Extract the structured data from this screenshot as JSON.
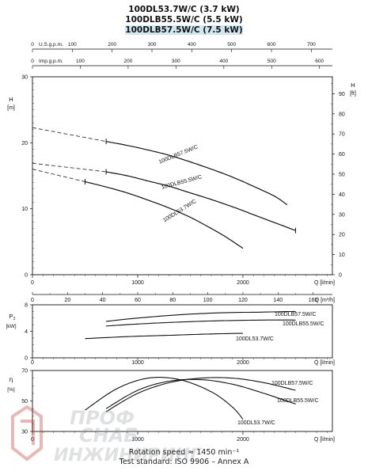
{
  "titles": [
    "100DL53.7W/C (3.7 kW)",
    "100DLB55.5W/C (5.5 kW)",
    "100DLB57.5W/C (7.5 kW)"
  ],
  "footer": {
    "line1": "Rotation speed ≈ 1450 min⁻¹",
    "line2": "Test standard: ISO 9906 – Annex A"
  },
  "watermark": "ПРОФ СНАБ ИНЖИНИРИНГ",
  "colors": {
    "curve": "#111111",
    "dashed": "#333333",
    "watermark": "#c0392b"
  },
  "chart_data": [
    {
      "type": "line",
      "title": "",
      "top_axes": [
        {
          "label": "U.S.g.p.m.",
          "ticks": [
            0,
            100,
            200,
            300,
            400,
            500,
            600,
            700
          ]
        },
        {
          "label": "Imp.g.p.m.",
          "ticks": [
            0,
            100,
            200,
            300,
            400,
            500,
            600
          ]
        }
      ],
      "xlabel": "Q [l/min]",
      "xlim": [
        0,
        2850
      ],
      "xticks": [
        0,
        1000,
        2000
      ],
      "ylabel": "H [m]",
      "ylim": [
        0,
        30
      ],
      "yticks": [
        0,
        10,
        20,
        30
      ],
      "y2label": "H [ft]",
      "y2ticks": [
        0,
        10,
        20,
        30,
        40,
        50,
        60,
        70,
        80,
        90
      ],
      "series": [
        {
          "name": "100DLB57.5W/C",
          "dashed": {
            "x": [
              0,
              700
            ],
            "y": [
              22.3,
              20.2
            ]
          },
          "x": [
            700,
            900,
            1100,
            1300,
            1500,
            1700,
            1900,
            2100,
            2300,
            2420
          ],
          "y": [
            20.2,
            19.6,
            18.9,
            18.1,
            17.1,
            16.0,
            14.8,
            13.4,
            11.9,
            10.6
          ]
        },
        {
          "name": "100DLB55.5W/C",
          "dashed": {
            "x": [
              0,
              700
            ],
            "y": [
              16.9,
              15.6
            ]
          },
          "x": [
            700,
            900,
            1100,
            1300,
            1500,
            1700,
            1900,
            2100,
            2300,
            2500
          ],
          "y": [
            15.6,
            15.0,
            14.2,
            13.4,
            12.4,
            11.4,
            10.3,
            9.1,
            7.9,
            6.7
          ]
        },
        {
          "name": "100DL53.7W/C",
          "dashed": {
            "x": [
              0,
              500
            ],
            "y": [
              16.0,
              14.1
            ]
          },
          "x": [
            500,
            700,
            900,
            1100,
            1300,
            1500,
            1700,
            1850,
            2000
          ],
          "y": [
            14.1,
            13.3,
            12.4,
            11.3,
            10.1,
            8.7,
            7.0,
            5.6,
            4.0
          ]
        }
      ],
      "markers": [
        {
          "x": 700,
          "y": 20.2
        },
        {
          "x": 700,
          "y": 15.6
        },
        {
          "x": 500,
          "y": 14.1
        },
        {
          "x": 2500,
          "y": 6.7
        }
      ]
    },
    {
      "type": "line",
      "xlabel": "Q [m³/h]",
      "xlim": [
        0,
        171
      ],
      "xticks": [
        0,
        20,
        40,
        60,
        80,
        100,
        120,
        140,
        160
      ],
      "ylabel": "P2 [kW]",
      "ylim": [
        0,
        8
      ],
      "yticks": [
        0,
        4,
        8
      ],
      "series": [
        {
          "name": "100DLB57.5W/C",
          "x": [
            700,
            1000,
            1400,
            1800,
            2200,
            2500
          ],
          "y": [
            5.5,
            6.0,
            6.5,
            6.8,
            6.9,
            7.0
          ]
        },
        {
          "name": "100DLB55.5W/C",
          "x": [
            700,
            1000,
            1400,
            1800,
            2200,
            2500
          ],
          "y": [
            4.8,
            5.1,
            5.4,
            5.6,
            5.7,
            5.7
          ]
        },
        {
          "name": "100DL53.7W/C",
          "x": [
            500,
            900,
            1300,
            1700,
            2000
          ],
          "y": [
            2.9,
            3.2,
            3.4,
            3.6,
            3.7
          ]
        }
      ]
    },
    {
      "type": "line",
      "xlabel": "Q [l/min]",
      "xlim": [
        0,
        2850
      ],
      "xticks": [
        0,
        1000,
        2000
      ],
      "ylabel": "η [%]",
      "ylim": [
        30,
        70
      ],
      "yticks": [
        30,
        50,
        70
      ],
      "series": [
        {
          "name": "100DLB57.5W/C",
          "x": [
            700,
            1000,
            1300,
            1600,
            1900,
            2200,
            2500
          ],
          "y": [
            43,
            55,
            62,
            65,
            65,
            62,
            57
          ]
        },
        {
          "name": "100DLB55.5W/C",
          "x": [
            700,
            1000,
            1300,
            1600,
            1900,
            2200,
            2500
          ],
          "y": [
            45,
            57,
            63,
            64,
            61,
            55,
            48
          ]
        },
        {
          "name": "100DL53.7W/C",
          "x": [
            500,
            800,
            1100,
            1400,
            1700,
            1900,
            2000
          ],
          "y": [
            44,
            58,
            65,
            64,
            56,
            46,
            38
          ]
        }
      ]
    }
  ]
}
